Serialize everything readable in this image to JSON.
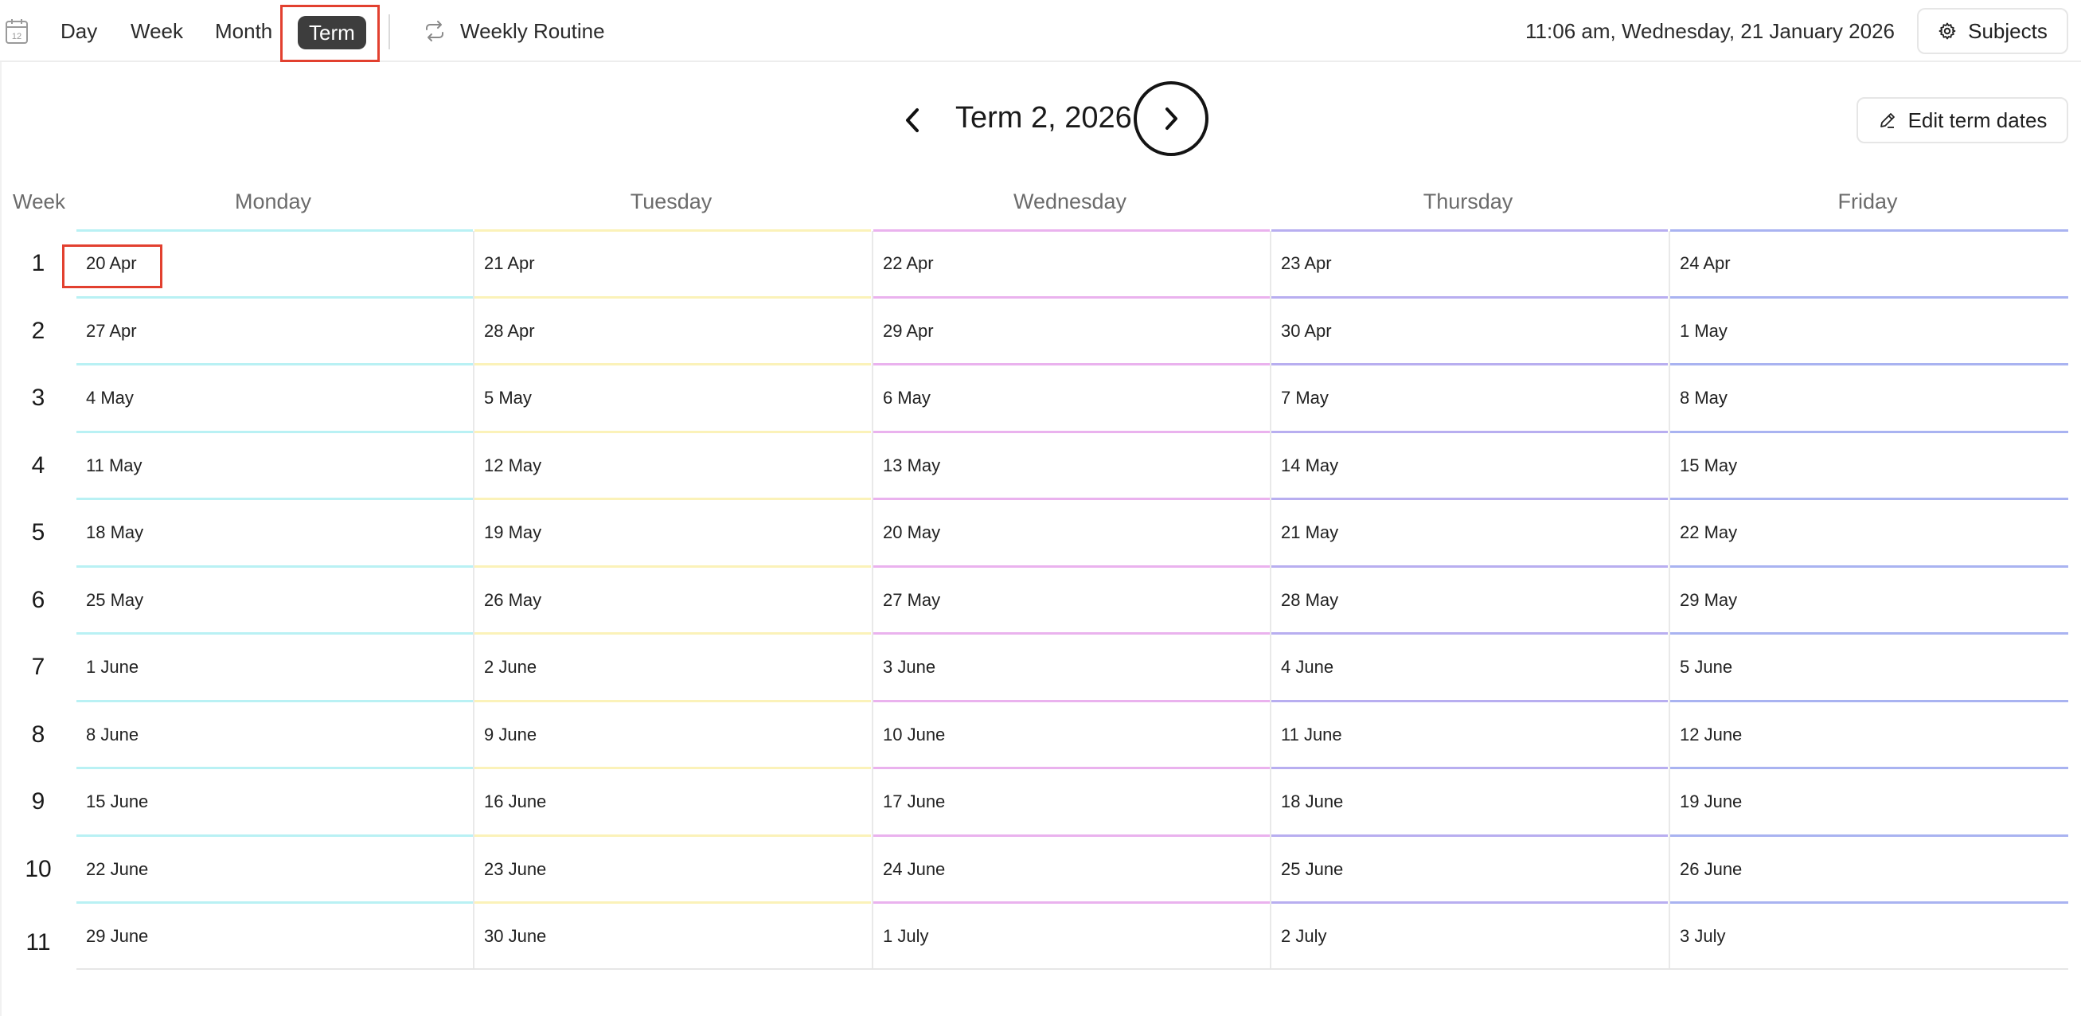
{
  "toolbar": {
    "calendar_icon_day": "12",
    "tabs": [
      "Day",
      "Week",
      "Month",
      "Term"
    ],
    "active_tab": "Term",
    "weekly_routine_label": "Weekly Routine",
    "datetime": "11:06 am, Wednesday, 21 January 2026",
    "subjects_label": "Subjects"
  },
  "term": {
    "title": "Term 2, 2026",
    "edit_label": "Edit term dates"
  },
  "grid": {
    "week_header": "Week",
    "days": [
      "Monday",
      "Tuesday",
      "Wednesday",
      "Thursday",
      "Friday"
    ],
    "day_colors": [
      "#b9f1f4",
      "#fbf2b9",
      "#eab2ee",
      "#b8aef0",
      "#a9b3f1"
    ],
    "weeks": [
      {
        "number": "1",
        "dates": [
          "20 Apr",
          "21 Apr",
          "22 Apr",
          "23 Apr",
          "24 Apr"
        ]
      },
      {
        "number": "2",
        "dates": [
          "27 Apr",
          "28 Apr",
          "29 Apr",
          "30 Apr",
          "1 May"
        ]
      },
      {
        "number": "3",
        "dates": [
          "4 May",
          "5 May",
          "6 May",
          "7 May",
          "8 May"
        ]
      },
      {
        "number": "4",
        "dates": [
          "11 May",
          "12 May",
          "13 May",
          "14 May",
          "15 May"
        ]
      },
      {
        "number": "5",
        "dates": [
          "18 May",
          "19 May",
          "20 May",
          "21 May",
          "22 May"
        ]
      },
      {
        "number": "6",
        "dates": [
          "25 May",
          "26 May",
          "27 May",
          "28 May",
          "29 May"
        ]
      },
      {
        "number": "7",
        "dates": [
          "1 June",
          "2 June",
          "3 June",
          "4 June",
          "5 June"
        ]
      },
      {
        "number": "8",
        "dates": [
          "8 June",
          "9 June",
          "10 June",
          "11 June",
          "12 June"
        ]
      },
      {
        "number": "9",
        "dates": [
          "15 June",
          "16 June",
          "17 June",
          "18 June",
          "19 June"
        ]
      },
      {
        "number": "10",
        "dates": [
          "22 June",
          "23 June",
          "24 June",
          "25 June",
          "26 June"
        ]
      },
      {
        "number": "11",
        "dates": [
          "29 June",
          "30 June",
          "1 July",
          "2 July",
          "3 July"
        ]
      }
    ]
  },
  "highlight_color": "#e2402f"
}
